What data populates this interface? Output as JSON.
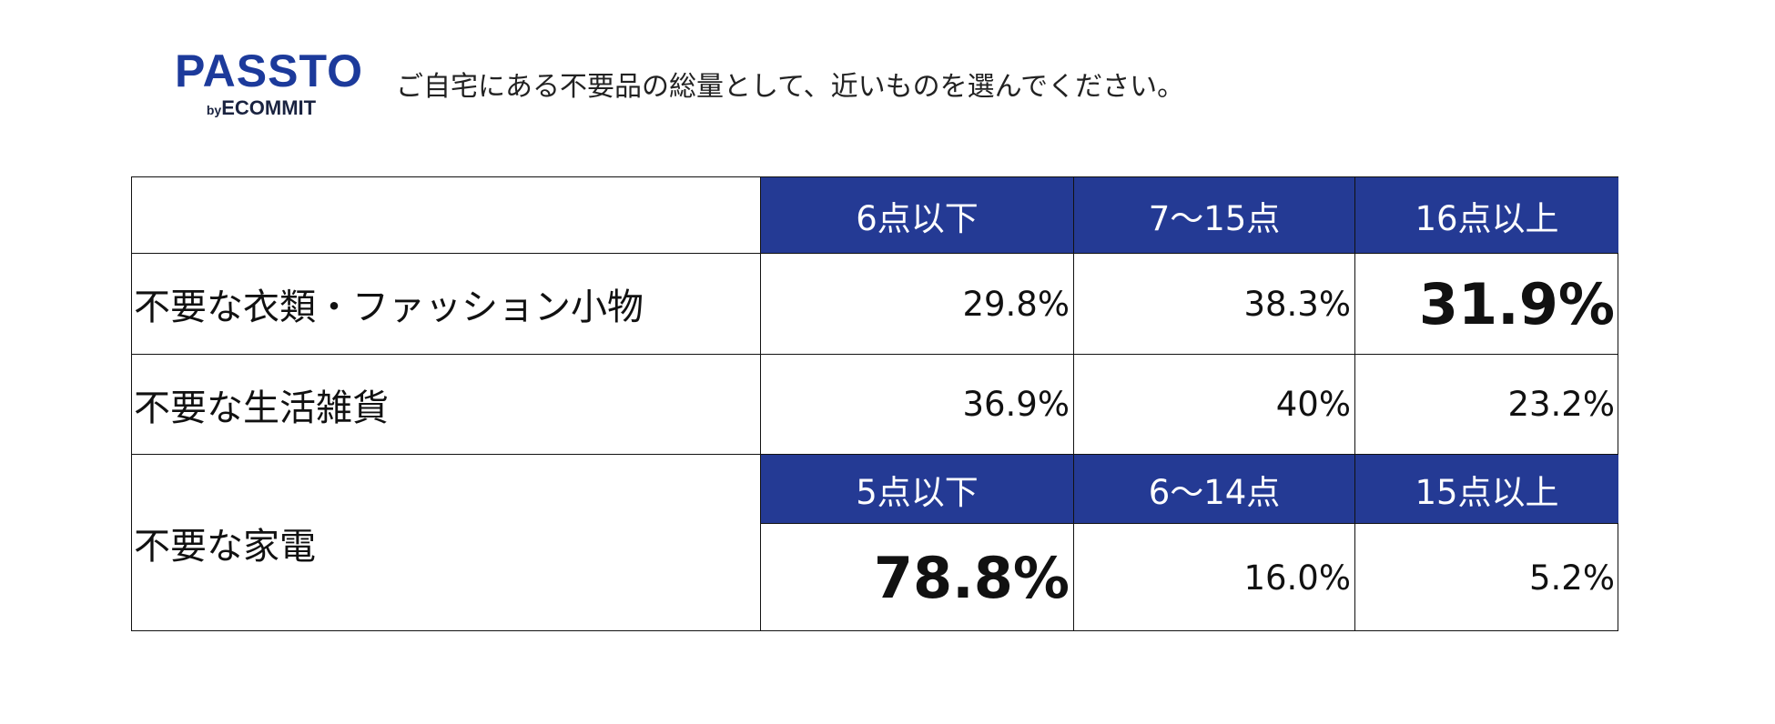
{
  "logo": {
    "name": "PASSTO",
    "by": "by",
    "company": "ECOMMIT"
  },
  "question": "ご自宅にある不要品の総量として、近いものを選んでください。",
  "table": {
    "header": [
      "6点以下",
      "7〜15点",
      "16点以上"
    ],
    "rows": [
      {
        "label": "不要な衣類・ファッション小物",
        "values": [
          "29.8%",
          "38.3%",
          "31.9%"
        ]
      },
      {
        "label": "不要な生活雑貨",
        "values": [
          "36.9%",
          "40%",
          "23.2%"
        ]
      },
      {
        "label": "不要な家電",
        "header": [
          "5点以下",
          "6〜14点",
          "15点以上"
        ],
        "values": [
          "78.8%",
          "16.0%",
          "5.2%"
        ]
      }
    ]
  }
}
